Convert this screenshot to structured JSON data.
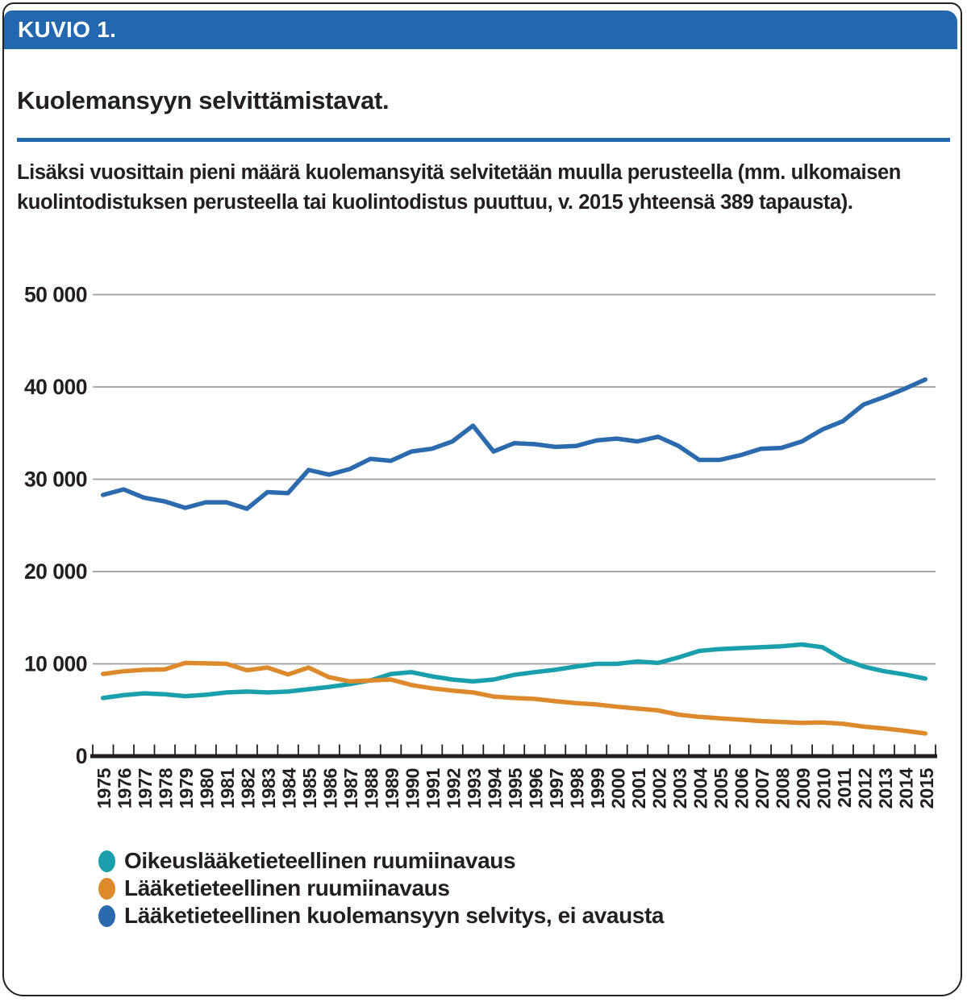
{
  "figure": {
    "kicker": "KUVIO 1.",
    "title": "Kuolemansyyn selvittämistavat.",
    "description_line1": "Lisäksi vuosittain pieni määrä kuolemansyitä selvitetään muulla perusteella (mm. ulkomaisen",
    "description_line2": "kuolintodistuksen perusteella tai kuolintodistus puuttuu, v. 2015 yhteensä 389 tapausta)."
  },
  "colors": {
    "header_blue": "#2368ae",
    "divider_blue": "#2368ae",
    "grid_gray": "#9c9c9c",
    "axis_black": "#231f20",
    "text_black": "#231f20"
  },
  "chart_data": {
    "type": "line",
    "title": "Kuolemansyyn selvittämistavat",
    "xlabel": "",
    "ylabel": "",
    "ylim": [
      0,
      50000
    ],
    "grid": true,
    "legend_position": "bottom-left",
    "yticks": [
      0,
      10000,
      20000,
      30000,
      40000,
      50000
    ],
    "ytick_labels": [
      "0",
      "10 000",
      "20 000",
      "30 000",
      "40 000",
      "50 000"
    ],
    "x": [
      1975,
      1976,
      1977,
      1978,
      1979,
      1980,
      1981,
      1982,
      1983,
      1984,
      1985,
      1986,
      1987,
      1988,
      1989,
      1990,
      1991,
      1992,
      1993,
      1994,
      1995,
      1996,
      1997,
      1998,
      1999,
      2000,
      2001,
      2002,
      2003,
      2004,
      2005,
      2006,
      2007,
      2008,
      2009,
      2010,
      2011,
      2012,
      2013,
      2014,
      2015
    ],
    "series": [
      {
        "name": "Oikeuslääketieteellinen ruumiinavaus",
        "color": "#1aa0ac",
        "values": [
          6300,
          6600,
          6800,
          6700,
          6500,
          6650,
          6900,
          7000,
          6900,
          7000,
          7250,
          7500,
          7800,
          8200,
          8900,
          9100,
          8650,
          8300,
          8100,
          8300,
          8800,
          9100,
          9350,
          9700,
          10000,
          10000,
          10250,
          10100,
          10700,
          11400,
          11600,
          11700,
          11800,
          11900,
          12100,
          11800,
          10500,
          9700,
          9200,
          8850,
          8400
        ]
      },
      {
        "name": "Lääketieteellinen ruumiinavaus",
        "color": "#dc8a2c",
        "values": [
          8900,
          9200,
          9350,
          9400,
          10100,
          10050,
          10000,
          9300,
          9600,
          8850,
          9600,
          8550,
          8100,
          8200,
          8300,
          7700,
          7350,
          7100,
          6900,
          6450,
          6300,
          6200,
          5950,
          5750,
          5600,
          5350,
          5150,
          4950,
          4500,
          4250,
          4100,
          3950,
          3800,
          3700,
          3600,
          3650,
          3500,
          3200,
          3000,
          2750,
          2450
        ]
      },
      {
        "name": "Lääketieteellinen kuolemansyyn selvitys, ei avausta",
        "color": "#2b6bad",
        "values": [
          28300,
          28900,
          28000,
          27600,
          26900,
          27500,
          27500,
          26800,
          28600,
          28500,
          31000,
          30500,
          31100,
          32200,
          32000,
          33000,
          33300,
          34100,
          35800,
          33000,
          33900,
          33800,
          33500,
          33600,
          34200,
          34400,
          34100,
          34600,
          33600,
          32100,
          32100,
          32600,
          33300,
          33400,
          34100,
          35400,
          36300,
          38100,
          38900,
          39800,
          40800
        ]
      }
    ]
  }
}
